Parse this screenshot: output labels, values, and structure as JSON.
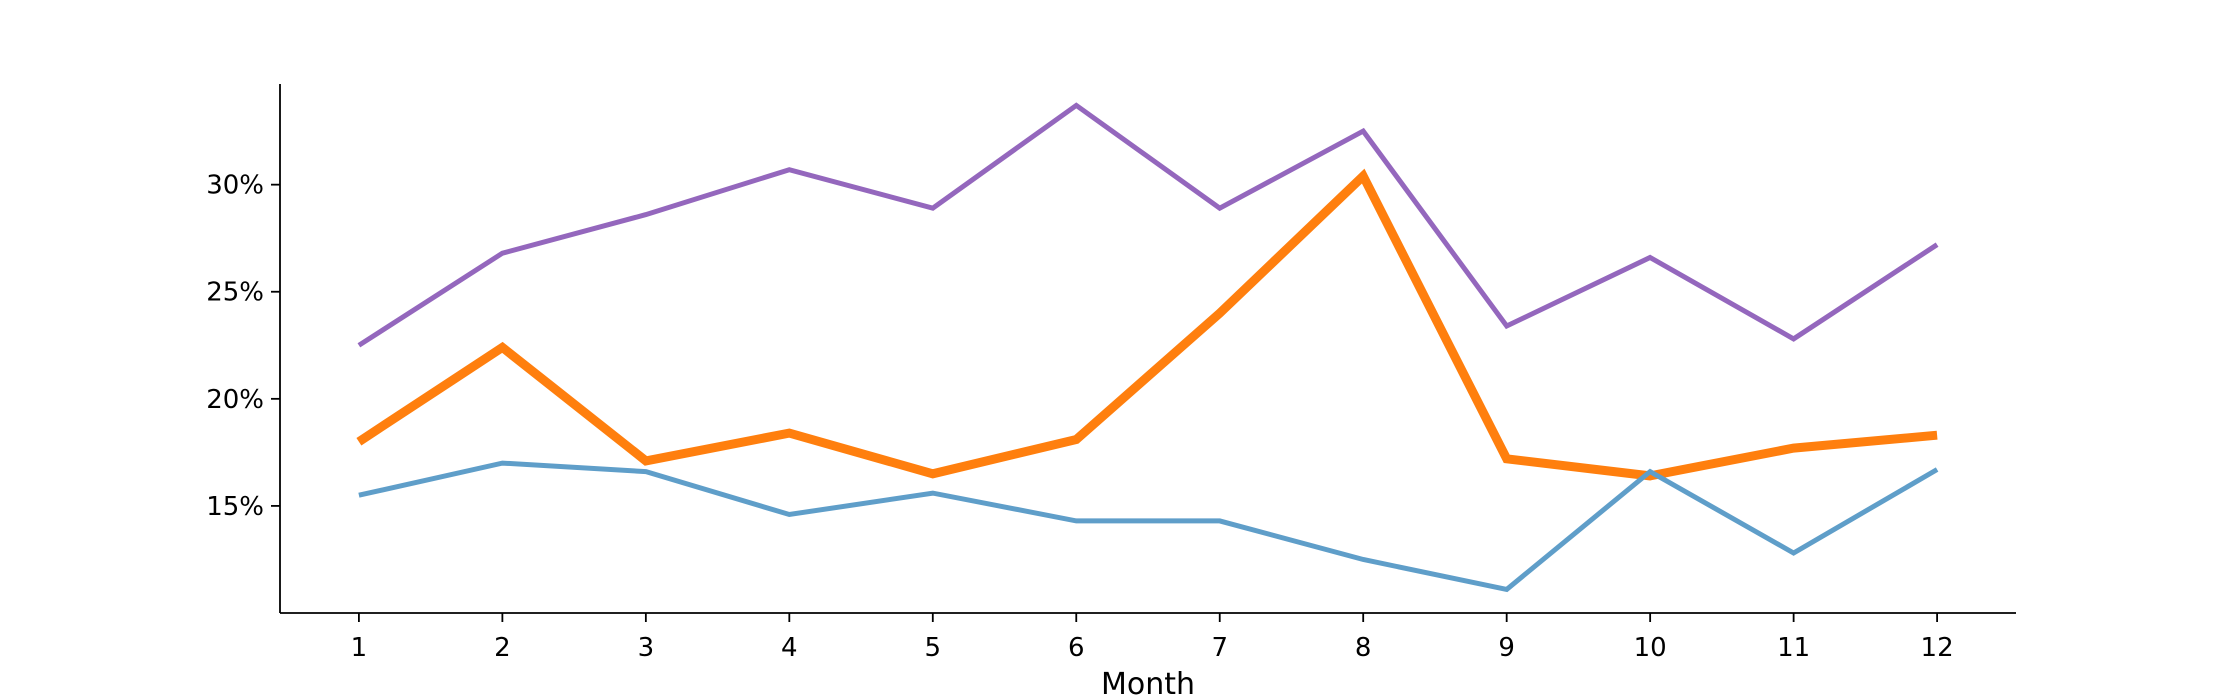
{
  "chart_data": {
    "type": "line",
    "title": "",
    "xlabel": "Month",
    "ylabel": "",
    "x": [
      1,
      2,
      3,
      4,
      5,
      6,
      7,
      8,
      9,
      10,
      11,
      12
    ],
    "x_tick_labels": [
      "1",
      "2",
      "3",
      "4",
      "5",
      "6",
      "7",
      "8",
      "9",
      "10",
      "11",
      "12"
    ],
    "xlim": [
      0.45,
      12.55
    ],
    "ylim": [
      0.1,
      0.347
    ],
    "y_ticks": [
      0.15,
      0.2,
      0.25,
      0.3
    ],
    "y_tick_labels": [
      "15%",
      "20%",
      "25%",
      "30%"
    ],
    "grid": false,
    "legend": "none",
    "series": [
      {
        "color": "#9467bd",
        "emphasis": "normal",
        "values": [
          0.225,
          0.268,
          0.286,
          0.307,
          0.289,
          0.337,
          0.289,
          0.325,
          0.234,
          0.266,
          0.228,
          0.272
        ]
      },
      {
        "color": "#ff7f0e",
        "emphasis": "highlighted",
        "values": [
          0.18,
          0.224,
          0.171,
          0.184,
          0.165,
          0.181,
          0.24,
          0.304,
          0.172,
          0.164,
          0.177,
          0.183
        ]
      },
      {
        "color": "#5f9ec9",
        "emphasis": "normal",
        "values": [
          0.155,
          0.17,
          0.166,
          0.146,
          0.156,
          0.143,
          0.143,
          0.125,
          0.111,
          0.166,
          0.128,
          0.167
        ]
      }
    ]
  }
}
